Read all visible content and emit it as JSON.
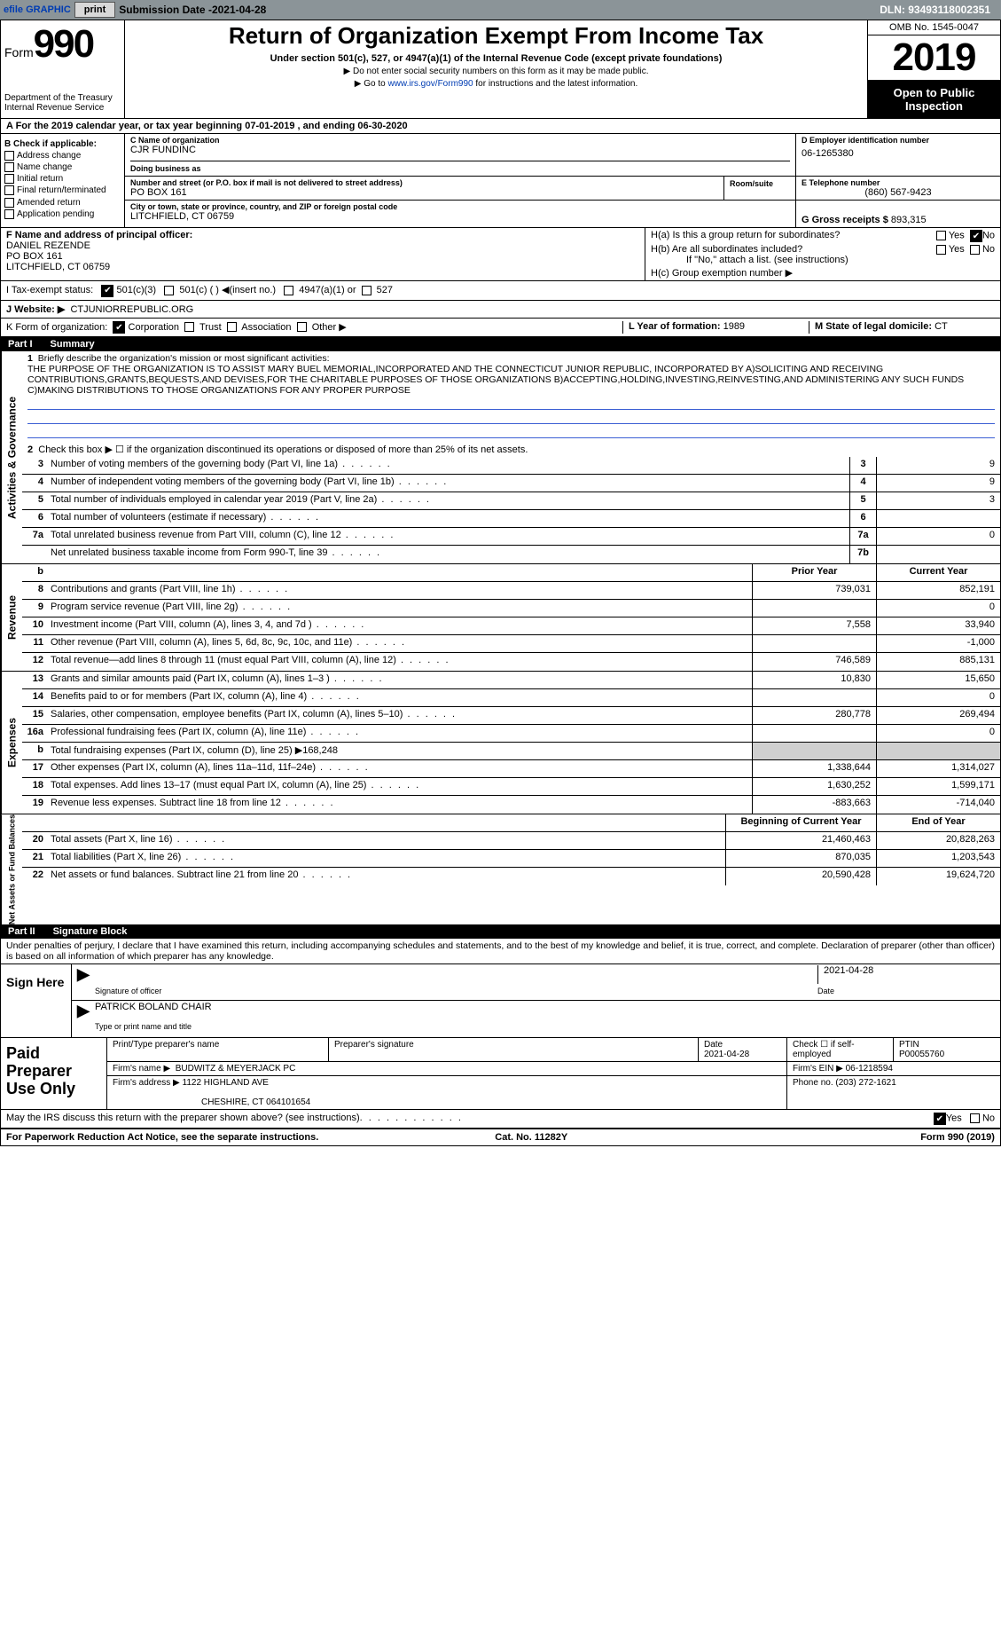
{
  "topbar": {
    "efile_link": "efile GRAPHIC",
    "print_btn": "print",
    "submission_label": "Submission Date - ",
    "submission_date": "2021-04-28",
    "dln": "DLN: 93493118002351"
  },
  "header": {
    "form_word": "Form",
    "form_num": "990",
    "dept1": "Department of the Treasury",
    "dept2": "Internal Revenue Service",
    "title": "Return of Organization Exempt From Income Tax",
    "subtitle": "Under section 501(c), 527, or 4947(a)(1) of the Internal Revenue Code (except private foundations)",
    "inst1": "▶ Do not enter social security numbers on this form as it may be made public.",
    "inst2a": "▶ Go to ",
    "inst2_link": "www.irs.gov/Form990",
    "inst2b": " for instructions and the latest information.",
    "omb": "OMB No. 1545-0047",
    "year": "2019",
    "inspection": "Open to Public Inspection"
  },
  "row_a": {
    "prefix": "A  For the 2019 calendar year, or tax year beginning ",
    "begin": "07-01-2019",
    "mid": "  , and ending ",
    "end": "06-30-2020"
  },
  "section_b": {
    "label": "B Check if applicable:",
    "items": [
      "Address change",
      "Name change",
      "Initial return",
      "Final return/terminated",
      "Amended return",
      "Application pending"
    ]
  },
  "section_c": {
    "name_lbl": "C Name of organization",
    "name": "CJR FUNDINC",
    "dba_lbl": "Doing business as",
    "dba": "",
    "street_lbl": "Number and street (or P.O. box if mail is not delivered to street address)",
    "street": "PO BOX 161",
    "room_lbl": "Room/suite",
    "city_lbl": "City or town, state or province, country, and ZIP or foreign postal code",
    "city": "LITCHFIELD, CT  06759"
  },
  "section_d": {
    "ein_lbl": "D Employer identification number",
    "ein": "06-1265380",
    "phone_lbl": "E Telephone number",
    "phone": "(860) 567-9423",
    "gross_lbl": "G Gross receipts $",
    "gross": "893,315"
  },
  "section_f": {
    "lbl": "F  Name and address of principal officer:",
    "name": "DANIEL REZENDE",
    "street": "PO BOX 161",
    "city": "LITCHFIELD, CT  06759"
  },
  "section_h": {
    "ha": "H(a)  Is this a group return for subordinates?",
    "hb": "H(b)  Are all subordinates included?",
    "hb_note": "If \"No,\" attach a list. (see instructions)",
    "hc": "H(c)  Group exemption number ▶",
    "yes": "Yes",
    "no": "No"
  },
  "row_i": {
    "lbl": "I   Tax-exempt status:",
    "o1": "501(c)(3)",
    "o2": "501(c) (   ) ◀(insert no.)",
    "o3": "4947(a)(1) or",
    "o4": "527"
  },
  "row_j": {
    "lbl": "J   Website: ▶",
    "val": "CTJUNIORREPUBLIC.ORG"
  },
  "row_k": {
    "lbl": "K Form of organization:",
    "opts": [
      "Corporation",
      "Trust",
      "Association",
      "Other ▶"
    ],
    "year_lbl": "L Year of formation:",
    "year": "1989",
    "state_lbl": "M State of legal domicile:",
    "state": "CT"
  },
  "part1": {
    "hdr_num": "Part I",
    "hdr_ttl": "Summary",
    "line1_lbl": "Briefly describe the organization's mission or most significant activities:",
    "mission": "THE PURPOSE OF THE ORGANIZATION IS TO ASSIST MARY BUEL MEMORIAL,INCORPORATED AND THE CONNECTICUT JUNIOR REPUBLIC, INCORPORATED BY A)SOLICITING AND RECEIVING CONTRIBUTIONS,GRANTS,BEQUESTS,AND DEVISES,FOR THE CHARITABLE PURPOSES OF THOSE ORGANIZATIONS B)ACCEPTING,HOLDING,INVESTING,REINVESTING,AND ADMINISTERING ANY SUCH FUNDS C)MAKING DISTRIBUTIONS TO THOSE ORGANIZATIONS FOR ANY PROPER PURPOSE",
    "line2": "Check this box ▶ ☐  if the organization discontinued its operations or disposed of more than 25% of its net assets.",
    "gov_lines": [
      {
        "n": "3",
        "t": "Number of voting members of the governing body (Part VI, line 1a)",
        "box": "3",
        "v": "9"
      },
      {
        "n": "4",
        "t": "Number of independent voting members of the governing body (Part VI, line 1b)",
        "box": "4",
        "v": "9"
      },
      {
        "n": "5",
        "t": "Total number of individuals employed in calendar year 2019 (Part V, line 2a)",
        "box": "5",
        "v": "3"
      },
      {
        "n": "6",
        "t": "Total number of volunteers (estimate if necessary)",
        "box": "6",
        "v": ""
      },
      {
        "n": "7a",
        "t": "Total unrelated business revenue from Part VIII, column (C), line 12",
        "box": "7a",
        "v": "0"
      },
      {
        "n": "",
        "t": "Net unrelated business taxable income from Form 990-T, line 39",
        "box": "7b",
        "v": ""
      }
    ],
    "col_prior": "Prior Year",
    "col_current": "Current Year",
    "rev_lines": [
      {
        "n": "8",
        "t": "Contributions and grants (Part VIII, line 1h)",
        "p": "739,031",
        "c": "852,191"
      },
      {
        "n": "9",
        "t": "Program service revenue (Part VIII, line 2g)",
        "p": "",
        "c": "0"
      },
      {
        "n": "10",
        "t": "Investment income (Part VIII, column (A), lines 3, 4, and 7d )",
        "p": "7,558",
        "c": "33,940"
      },
      {
        "n": "11",
        "t": "Other revenue (Part VIII, column (A), lines 5, 6d, 8c, 9c, 10c, and 11e)",
        "p": "",
        "c": "-1,000"
      },
      {
        "n": "12",
        "t": "Total revenue—add lines 8 through 11 (must equal Part VIII, column (A), line 12)",
        "p": "746,589",
        "c": "885,131"
      }
    ],
    "exp_lines": [
      {
        "n": "13",
        "t": "Grants and similar amounts paid (Part IX, column (A), lines 1–3 )",
        "p": "10,830",
        "c": "15,650"
      },
      {
        "n": "14",
        "t": "Benefits paid to or for members (Part IX, column (A), line 4)",
        "p": "",
        "c": "0"
      },
      {
        "n": "15",
        "t": "Salaries, other compensation, employee benefits (Part IX, column (A), lines 5–10)",
        "p": "280,778",
        "c": "269,494"
      },
      {
        "n": "16a",
        "t": "Professional fundraising fees (Part IX, column (A), line 11e)",
        "p": "",
        "c": "0"
      },
      {
        "n": "b",
        "t": "Total fundraising expenses (Part IX, column (D), line 25) ▶168,248",
        "p": "",
        "c": "",
        "grey": true
      },
      {
        "n": "17",
        "t": "Other expenses (Part IX, column (A), lines 11a–11d, 11f–24e)",
        "p": "1,338,644",
        "c": "1,314,027"
      },
      {
        "n": "18",
        "t": "Total expenses. Add lines 13–17 (must equal Part IX, column (A), line 25)",
        "p": "1,630,252",
        "c": "1,599,171"
      },
      {
        "n": "19",
        "t": "Revenue less expenses. Subtract line 18 from line 12",
        "p": "-883,663",
        "c": "-714,040"
      }
    ],
    "col_begin": "Beginning of Current Year",
    "col_end": "End of Year",
    "net_lines": [
      {
        "n": "20",
        "t": "Total assets (Part X, line 16)",
        "p": "21,460,463",
        "c": "20,828,263"
      },
      {
        "n": "21",
        "t": "Total liabilities (Part X, line 26)",
        "p": "870,035",
        "c": "1,203,543"
      },
      {
        "n": "22",
        "t": "Net assets or fund balances. Subtract line 21 from line 20",
        "p": "20,590,428",
        "c": "19,624,720"
      }
    ],
    "side_gov": "Activities & Governance",
    "side_rev": "Revenue",
    "side_exp": "Expenses",
    "side_net": "Net Assets or Fund Balances"
  },
  "part2": {
    "hdr_num": "Part II",
    "hdr_ttl": "Signature Block",
    "perjury": "Under penalties of perjury, I declare that I have examined this return, including accompanying schedules and statements, and to the best of my knowledge and belief, it is true, correct, and complete. Declaration of preparer (other than officer) is based on all information of which preparer has any knowledge.",
    "sign_here": "Sign Here",
    "sig_officer_lbl": "Signature of officer",
    "sig_date": "2021-04-28",
    "date_lbl": "Date",
    "officer_name": "PATRICK BOLAND CHAIR",
    "officer_lbl": "Type or print name and title",
    "paid": "Paid Preparer Use Only",
    "prep_name_lbl": "Print/Type preparer's name",
    "prep_sig_lbl": "Preparer's signature",
    "prep_date": "2021-04-28",
    "self_emp": "Check ☐ if self-employed",
    "ptin_lbl": "PTIN",
    "ptin": "P00055760",
    "firm_name_lbl": "Firm's name     ▶",
    "firm_name": "BUDWITZ & MEYERJACK PC",
    "firm_ein_lbl": "Firm's EIN ▶",
    "firm_ein": "06-1218594",
    "firm_addr_lbl": "Firm's address ▶",
    "firm_addr1": "1122 HIGHLAND AVE",
    "firm_addr2": "CHESHIRE, CT  064101654",
    "firm_phone_lbl": "Phone no.",
    "firm_phone": "(203) 272-1621"
  },
  "footer": {
    "discuss": "May the IRS discuss this return with the preparer shown above? (see instructions)",
    "yes": "Yes",
    "no": "No",
    "pra": "For Paperwork Reduction Act Notice, see the separate instructions.",
    "cat": "Cat. No. 11282Y",
    "form": "Form 990 (2019)"
  },
  "colors": {
    "topbar_bg": "#8b9498",
    "link": "#003cb3",
    "blueline": "#3c5fd4"
  }
}
